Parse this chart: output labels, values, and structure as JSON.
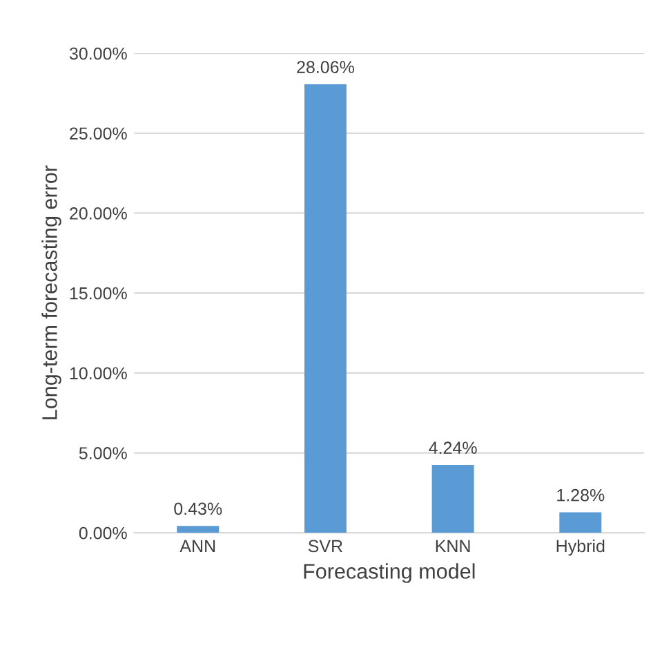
{
  "chart_data": {
    "type": "bar",
    "xlabel": "Forecasting model",
    "ylabel": "Long-term forecasting error",
    "categories": [
      "ANN",
      "SVR",
      "KNN",
      "Hybrid"
    ],
    "values": [
      0.43,
      28.06,
      4.24,
      1.28
    ],
    "value_labels": [
      "0.43%",
      "28.06%",
      "4.24%",
      "1.28%"
    ],
    "color": "#5b9bd5",
    "ylim": [
      0,
      30
    ],
    "yticks": [
      {
        "value": 0,
        "label": "0.00%"
      },
      {
        "value": 5,
        "label": "5.00%"
      },
      {
        "value": 10,
        "label": "10.00%"
      },
      {
        "value": 15,
        "label": "15.00%"
      },
      {
        "value": 20,
        "label": "20.00%"
      },
      {
        "value": 25,
        "label": "25.00%"
      },
      {
        "value": 30,
        "label": "30.00%"
      }
    ],
    "grid": "y"
  }
}
